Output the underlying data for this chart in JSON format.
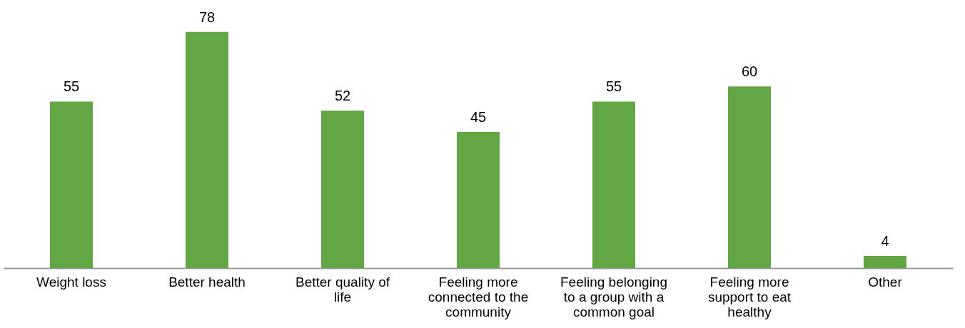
{
  "chart_data": {
    "type": "bar",
    "categories": [
      "Weight loss",
      "Better health",
      "Better quality of life",
      "Feeling more connected to the community",
      "Feeling belonging to a group with a common goal",
      "Feeling more support to eat healthy",
      "Other"
    ],
    "values": [
      55,
      78,
      52,
      45,
      55,
      60,
      4
    ],
    "color": "#62a744",
    "data_labels": true
  }
}
